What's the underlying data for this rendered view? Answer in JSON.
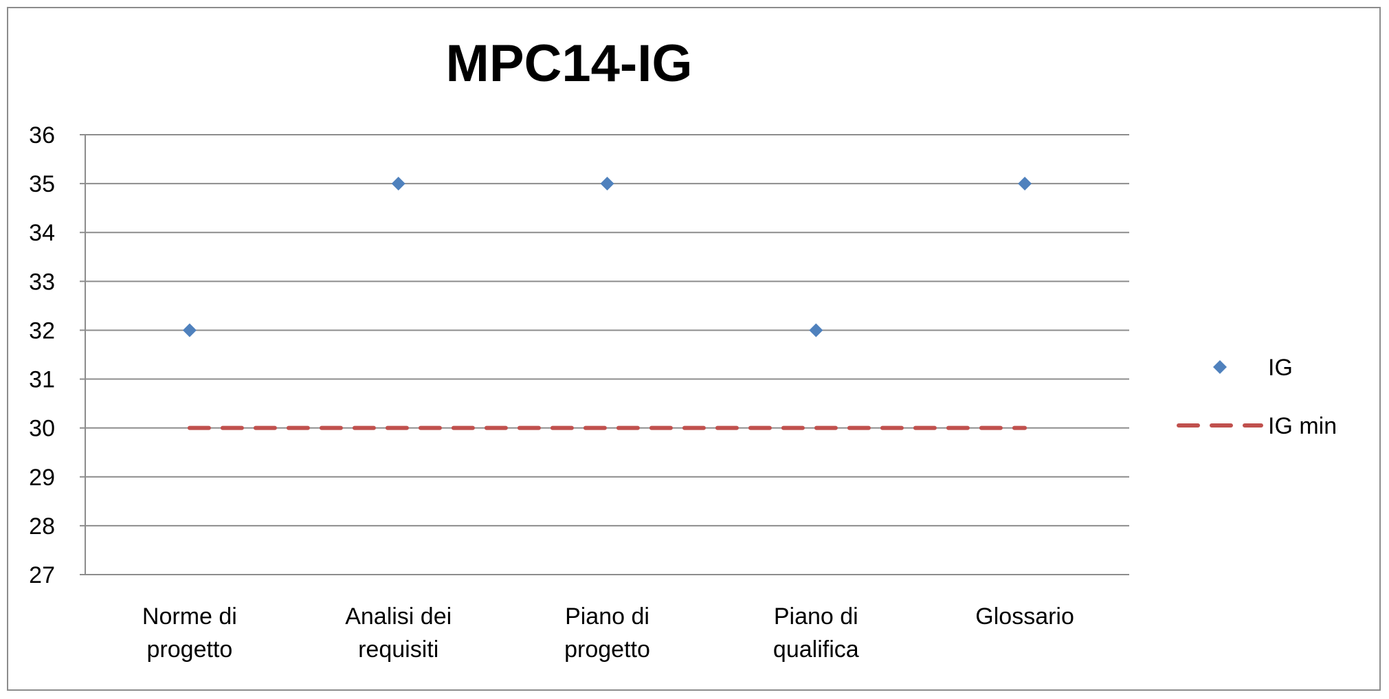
{
  "chart_data": {
    "type": "scatter",
    "title": "MPC14-IG",
    "xlabel": "",
    "ylabel": "",
    "categories": [
      [
        "Norme di",
        "progetto"
      ],
      [
        "Analisi dei",
        "requisiti"
      ],
      [
        "Piano di",
        "progetto"
      ],
      [
        "Piano di",
        "qualifica"
      ],
      [
        "Glossario"
      ]
    ],
    "series": [
      {
        "name": "IG",
        "kind": "marker",
        "marker": "diamond",
        "color": "#4f81bd",
        "values": [
          32,
          35,
          35,
          32,
          35
        ]
      },
      {
        "name": "IG min",
        "kind": "line",
        "dash": "dashed",
        "color": "#c0504d",
        "values": [
          30,
          30,
          30,
          30,
          30
        ]
      }
    ],
    "ylim": [
      27,
      36
    ],
    "yticks": [
      27,
      28,
      29,
      30,
      31,
      32,
      33,
      34,
      35,
      36
    ],
    "grid": true,
    "legend_position": "right",
    "colors": {
      "gridline": "#8c8c8c",
      "axis": "#8c8c8c",
      "border": "#8c8c8c"
    }
  }
}
